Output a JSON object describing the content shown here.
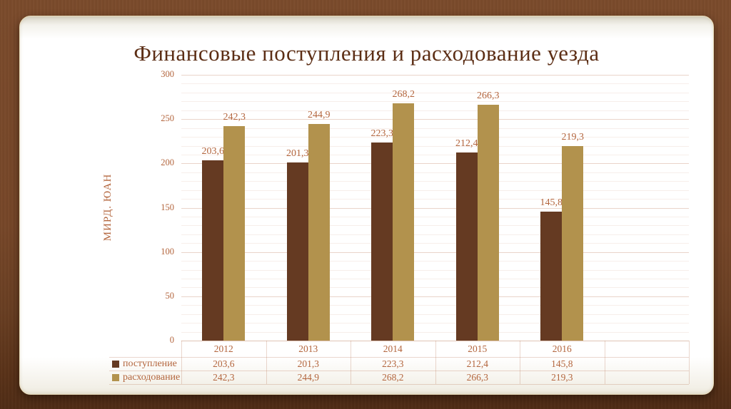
{
  "chart_data": {
    "type": "bar",
    "title": "Финансовые поступления и расходование уезда",
    "ylabel": "МИРД. ЮАН",
    "xlabel": "",
    "categories": [
      "2012",
      "2013",
      "2014",
      "2015",
      "2016"
    ],
    "series": [
      {
        "name": "поступление",
        "color": "#653a22",
        "values": [
          203.6,
          201.3,
          223.3,
          212.4,
          145.8
        ]
      },
      {
        "name": "расходование",
        "color": "#b2924d",
        "values": [
          242.3,
          244.9,
          268.2,
          266.3,
          219.3
        ]
      }
    ],
    "ylim": [
      0,
      300
    ],
    "ytick_step": 50,
    "minor_grid_step": 10,
    "grid": true,
    "legend_position": "table-left",
    "decimal_separator": ",",
    "colors": {
      "accent_text": "#b3653d",
      "title_text": "#5c2e15",
      "grid_major": "rgba(190,120,90,0.32)",
      "grid_minor": "rgba(190,120,90,0.13)",
      "table_border": "rgba(186,124,92,0.30)",
      "axis_line": "rgba(186,124,92,0.45)"
    }
  }
}
